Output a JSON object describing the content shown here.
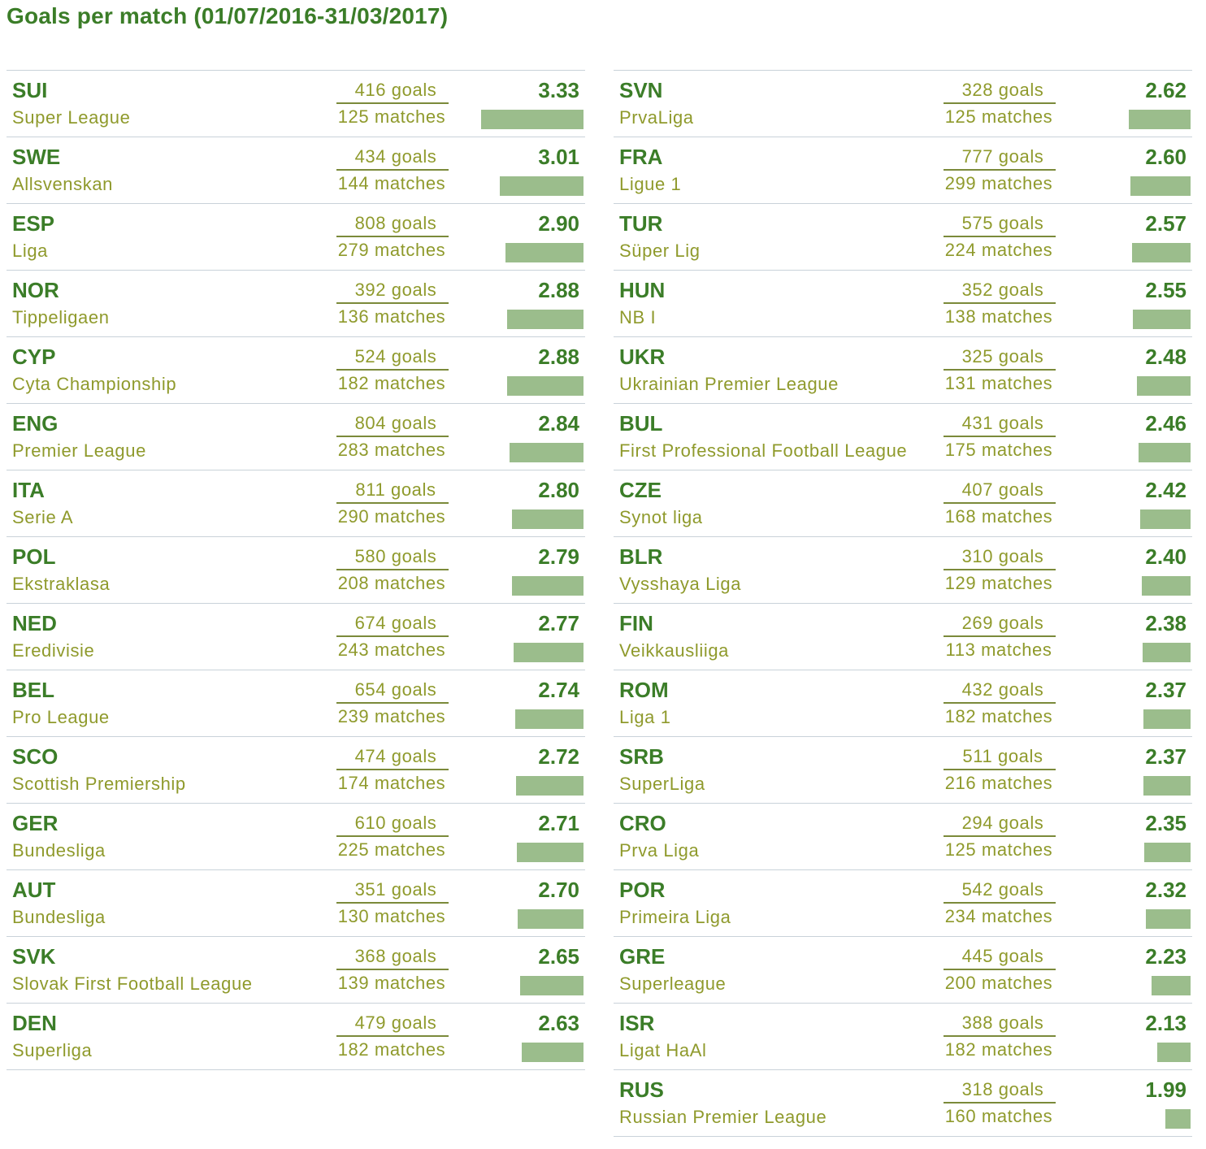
{
  "title": "Goals per match (01/07/2016-31/03/2017)",
  "chart_data": {
    "type": "bar",
    "title": "Goals per match (01/07/2016-31/03/2017)",
    "xlim": [
      0,
      3.33
    ],
    "columns": [
      [
        {
          "code": "SUI",
          "league": "Super League",
          "goals": "416 goals",
          "matches": "125 matches",
          "avg": "3.33",
          "value": 3.33
        },
        {
          "code": "SWE",
          "league": "Allsvenskan",
          "goals": "434 goals",
          "matches": "144 matches",
          "avg": "3.01",
          "value": 3.01
        },
        {
          "code": "ESP",
          "league": "Liga",
          "goals": "808 goals",
          "matches": "279 matches",
          "avg": "2.90",
          "value": 2.9
        },
        {
          "code": "NOR",
          "league": "Tippeligaen",
          "goals": "392 goals",
          "matches": "136 matches",
          "avg": "2.88",
          "value": 2.88
        },
        {
          "code": "CYP",
          "league": "Cyta Championship",
          "goals": "524 goals",
          "matches": "182 matches",
          "avg": "2.88",
          "value": 2.88
        },
        {
          "code": "ENG",
          "league": "Premier League",
          "goals": "804 goals",
          "matches": "283 matches",
          "avg": "2.84",
          "value": 2.84
        },
        {
          "code": "ITA",
          "league": "Serie A",
          "goals": "811 goals",
          "matches": "290 matches",
          "avg": "2.80",
          "value": 2.8
        },
        {
          "code": "POL",
          "league": "Ekstraklasa",
          "goals": "580 goals",
          "matches": "208 matches",
          "avg": "2.79",
          "value": 2.79
        },
        {
          "code": "NED",
          "league": "Eredivisie",
          "goals": "674 goals",
          "matches": "243 matches",
          "avg": "2.77",
          "value": 2.77
        },
        {
          "code": "BEL",
          "league": "Pro League",
          "goals": "654 goals",
          "matches": "239 matches",
          "avg": "2.74",
          "value": 2.74
        },
        {
          "code": "SCO",
          "league": "Scottish Premiership",
          "goals": "474 goals",
          "matches": "174 matches",
          "avg": "2.72",
          "value": 2.72
        },
        {
          "code": "GER",
          "league": "Bundesliga",
          "goals": "610 goals",
          "matches": "225 matches",
          "avg": "2.71",
          "value": 2.71
        },
        {
          "code": "AUT",
          "league": "Bundesliga",
          "goals": "351 goals",
          "matches": "130 matches",
          "avg": "2.70",
          "value": 2.7
        },
        {
          "code": "SVK",
          "league": "Slovak First Football League",
          "goals": "368 goals",
          "matches": "139 matches",
          "avg": "2.65",
          "value": 2.65
        },
        {
          "code": "DEN",
          "league": "Superliga",
          "goals": "479 goals",
          "matches": "182 matches",
          "avg": "2.63",
          "value": 2.63
        }
      ],
      [
        {
          "code": "SVN",
          "league": "PrvaLiga",
          "goals": "328 goals",
          "matches": "125 matches",
          "avg": "2.62",
          "value": 2.62
        },
        {
          "code": "FRA",
          "league": "Ligue 1",
          "goals": "777 goals",
          "matches": "299 matches",
          "avg": "2.60",
          "value": 2.6
        },
        {
          "code": "TUR",
          "league": "Süper Lig",
          "goals": "575 goals",
          "matches": "224 matches",
          "avg": "2.57",
          "value": 2.57
        },
        {
          "code": "HUN",
          "league": "NB I",
          "goals": "352 goals",
          "matches": "138 matches",
          "avg": "2.55",
          "value": 2.55
        },
        {
          "code": "UKR",
          "league": "Ukrainian Premier League",
          "goals": "325 goals",
          "matches": "131 matches",
          "avg": "2.48",
          "value": 2.48
        },
        {
          "code": "BUL",
          "league": "First Professional Football League",
          "goals": "431 goals",
          "matches": "175 matches",
          "avg": "2.46",
          "value": 2.46
        },
        {
          "code": "CZE",
          "league": "Synot liga",
          "goals": "407 goals",
          "matches": "168 matches",
          "avg": "2.42",
          "value": 2.42
        },
        {
          "code": "BLR",
          "league": "Vysshaya Liga",
          "goals": "310 goals",
          "matches": "129 matches",
          "avg": "2.40",
          "value": 2.4
        },
        {
          "code": "FIN",
          "league": "Veikkausliiga",
          "goals": "269 goals",
          "matches": "113 matches",
          "avg": "2.38",
          "value": 2.38
        },
        {
          "code": "ROM",
          "league": "Liga 1",
          "goals": "432 goals",
          "matches": "182 matches",
          "avg": "2.37",
          "value": 2.37
        },
        {
          "code": "SRB",
          "league": "SuperLiga",
          "goals": "511 goals",
          "matches": "216 matches",
          "avg": "2.37",
          "value": 2.37
        },
        {
          "code": "CRO",
          "league": "Prva Liga",
          "goals": "294 goals",
          "matches": "125 matches",
          "avg": "2.35",
          "value": 2.35
        },
        {
          "code": "POR",
          "league": "Primeira Liga",
          "goals": "542 goals",
          "matches": "234 matches",
          "avg": "2.32",
          "value": 2.32
        },
        {
          "code": "GRE",
          "league": "Superleague",
          "goals": "445 goals",
          "matches": "200 matches",
          "avg": "2.23",
          "value": 2.23
        },
        {
          "code": "ISR",
          "league": "Ligat HaAl",
          "goals": "388 goals",
          "matches": "182 matches",
          "avg": "2.13",
          "value": 2.13
        },
        {
          "code": "RUS",
          "league": "Russian Premier League",
          "goals": "318 goals",
          "matches": "160 matches",
          "avg": "1.99",
          "value": 1.99
        }
      ]
    ],
    "colors": {
      "heading": "#3b7d28",
      "text": "#8f9a2c",
      "bar": "#9bbd8c",
      "divider": "#c9d2d9"
    }
  }
}
